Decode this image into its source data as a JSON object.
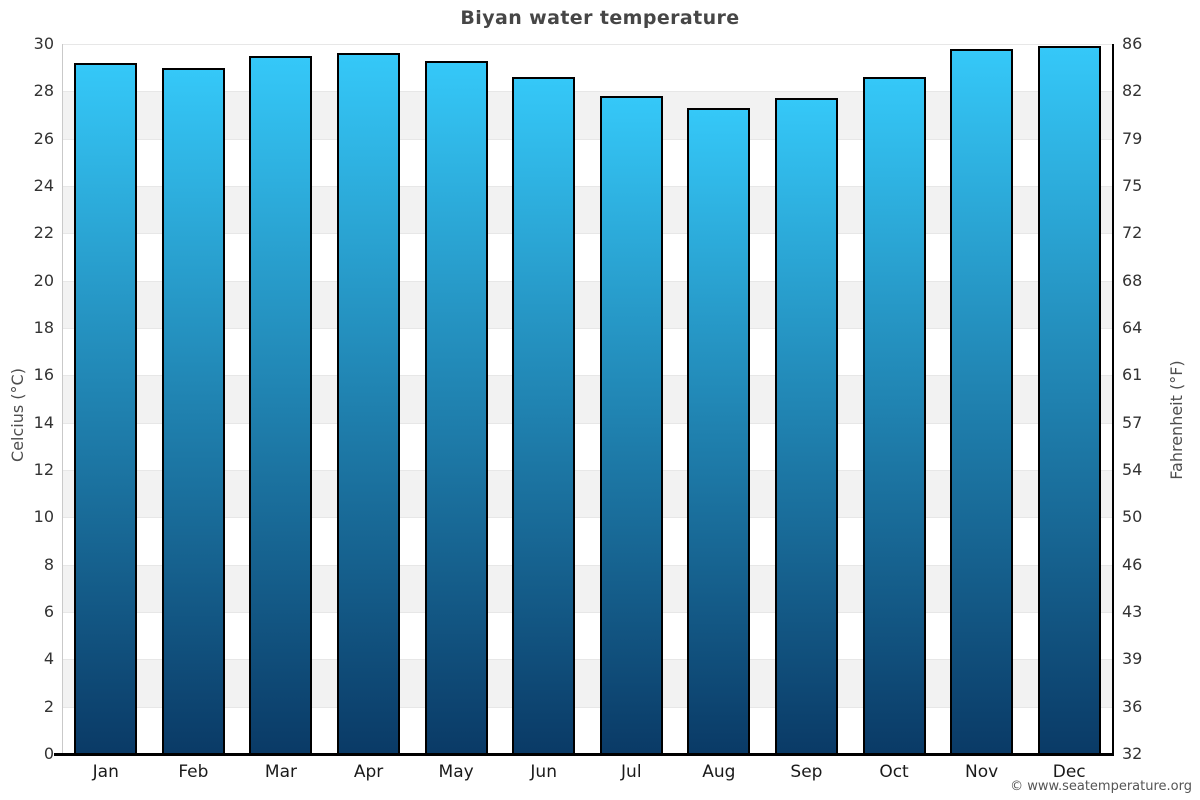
{
  "title": "Biyan water temperature",
  "footer": {
    "copyright": "© www.seatemperature.org"
  },
  "chart_data": {
    "type": "bar",
    "title": "Biyan water temperature",
    "categories": [
      "Jan",
      "Feb",
      "Mar",
      "Apr",
      "May",
      "Jun",
      "Jul",
      "Aug",
      "Sep",
      "Oct",
      "Nov",
      "Dec"
    ],
    "values": [
      29.2,
      29.0,
      29.5,
      29.6,
      29.3,
      28.6,
      27.8,
      27.3,
      27.7,
      28.6,
      29.8,
      29.9
    ],
    "unit": "°C",
    "ylabel_left": "Celcius (°C)",
    "ylabel_right": "Fahrenheit (°F)",
    "ylim": [
      0,
      30
    ],
    "ytick_step": 2,
    "yticks_left": [
      0,
      2,
      4,
      6,
      8,
      10,
      12,
      14,
      16,
      18,
      20,
      22,
      24,
      26,
      28,
      30
    ],
    "yticks_right_labels": [
      "32",
      "36",
      "39",
      "43",
      "46",
      "50",
      "54",
      "57",
      "61",
      "64",
      "68",
      "72",
      "75",
      "79",
      "82",
      "86"
    ],
    "grid": "alternating-horizontal-bands",
    "legend": "none",
    "colors": {
      "bar_gradient_top": "#35c8f8",
      "bar_gradient_bottom": "#0a3a66",
      "bar_border": "#000000",
      "band_fill": "#f2f2f2",
      "band_line": "#e7e7e7",
      "left_axis_line": "#c9c9c9",
      "axis_line": "#000000",
      "title_color": "#464646",
      "tick_color": "#333333",
      "axis_label_color": "#4d4d4d",
      "footer_color": "#555555"
    }
  }
}
